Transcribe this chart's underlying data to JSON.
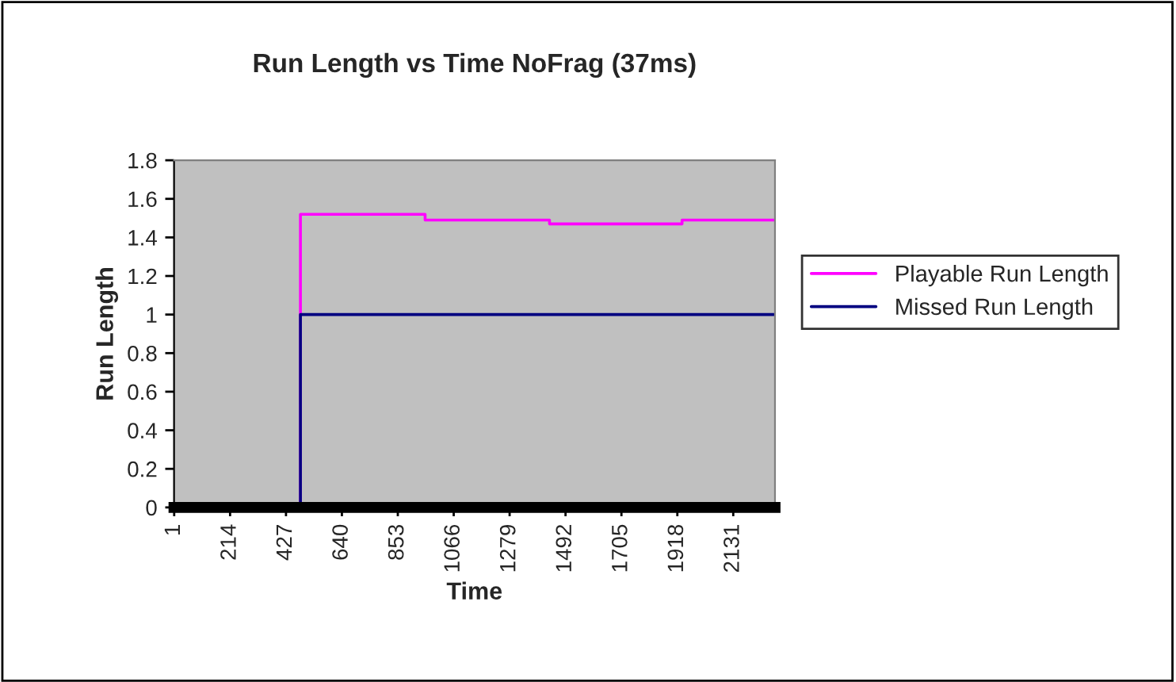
{
  "chart_data": {
    "type": "step",
    "title": "Run Length vs Time NoFrag (37ms)",
    "xlabel": "Time",
    "ylabel": "Run Length",
    "x": [
      1,
      482,
      957,
      1431,
      1936,
      2290
    ],
    "series": [
      {
        "name": "Playable Run Length",
        "color": "#ff00ff",
        "values": [
          0,
          1.52,
          1.49,
          1.47,
          1.49,
          1.49
        ]
      },
      {
        "name": "Missed Run Length",
        "color": "#000080",
        "values": [
          0,
          1,
          1,
          1,
          1,
          1
        ]
      }
    ],
    "xlim": [
      0.5,
      2290
    ],
    "xticks": [
      1,
      214,
      427,
      640,
      853,
      1066,
      1279,
      1492,
      1705,
      1918,
      2131
    ],
    "ylim": [
      0,
      1.8
    ],
    "yticks": [
      0,
      0.2,
      0.4,
      0.6,
      0.8,
      1,
      1.2,
      1.4,
      1.6,
      1.8
    ],
    "grid": false,
    "legend": "right"
  }
}
